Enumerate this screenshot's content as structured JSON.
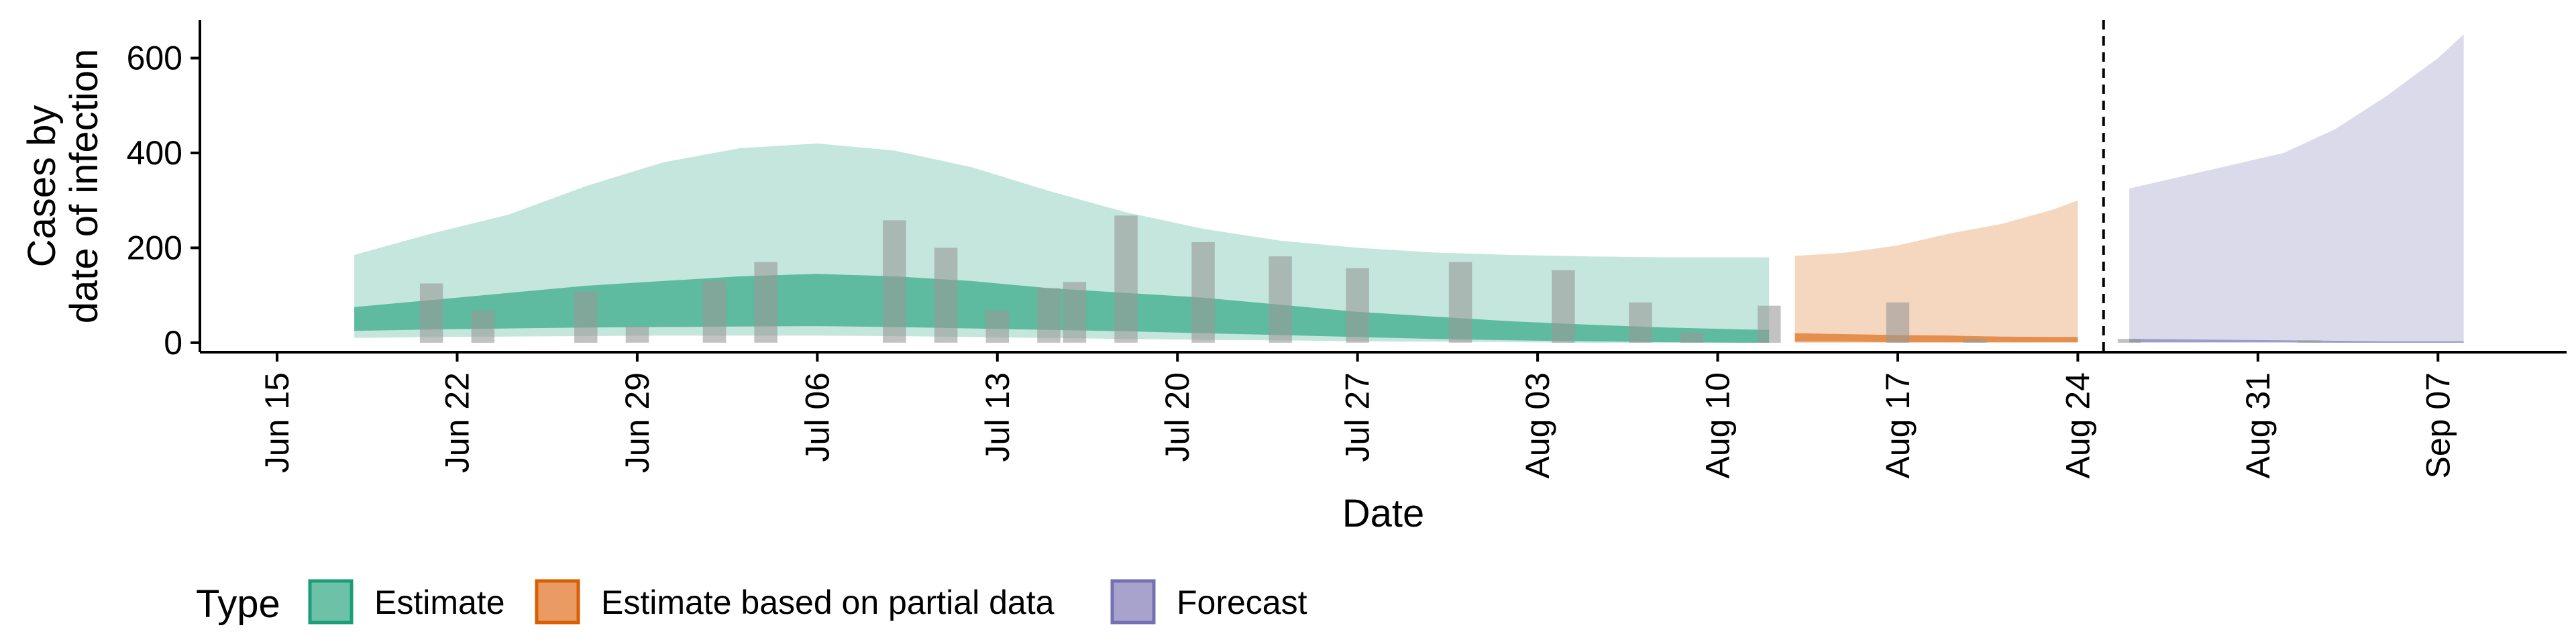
{
  "chart_data": {
    "type": "area",
    "x_axis": {
      "label": "Date",
      "range": [
        "2020-06-12",
        "2020-09-12"
      ],
      "ticks": [
        {
          "date": "2020-06-15",
          "label": "Jun 15"
        },
        {
          "date": "2020-06-22",
          "label": "Jun 22"
        },
        {
          "date": "2020-06-29",
          "label": "Jun 29"
        },
        {
          "date": "2020-07-06",
          "label": "Jul 06"
        },
        {
          "date": "2020-07-13",
          "label": "Jul 13"
        },
        {
          "date": "2020-07-20",
          "label": "Jul 20"
        },
        {
          "date": "2020-07-27",
          "label": "Jul 27"
        },
        {
          "date": "2020-08-03",
          "label": "Aug 03"
        },
        {
          "date": "2020-08-10",
          "label": "Aug 10"
        },
        {
          "date": "2020-08-17",
          "label": "Aug 17"
        },
        {
          "date": "2020-08-24",
          "label": "Aug 24"
        },
        {
          "date": "2020-08-31",
          "label": "Aug 31"
        },
        {
          "date": "2020-09-07",
          "label": "Sep 07"
        }
      ]
    },
    "y_axis": {
      "label_lines": [
        "Cases by",
        "date of infection"
      ],
      "range": [
        -20,
        680
      ],
      "ticks": [
        0,
        200,
        400,
        600
      ]
    },
    "grid": false,
    "legend": {
      "position": "bottom-left",
      "title": "Type",
      "entries": [
        {
          "label": "Estimate",
          "fill": "#6dc1a6",
          "stroke": "#1b9e77"
        },
        {
          "label": "Estimate based on partial data",
          "fill": "#ea9b63",
          "stroke": "#d95f02"
        },
        {
          "label": "Forecast",
          "fill": "#a8a3cd",
          "stroke": "#7570b3"
        }
      ]
    },
    "colors": {
      "estimate": "#1b9e77",
      "partial": "#d95f02",
      "forecast": "#7570b3",
      "observed_bars": "#9a9a9a",
      "reference_line": "#000000"
    },
    "reference_line_date": "2020-08-25",
    "series": [
      {
        "type": "Estimate",
        "dates": [
          "2020-06-18",
          "2020-06-21",
          "2020-06-24",
          "2020-06-27",
          "2020-06-30",
          "2020-07-03",
          "2020-07-06",
          "2020-07-09",
          "2020-07-12",
          "2020-07-15",
          "2020-07-18",
          "2020-07-21",
          "2020-07-24",
          "2020-07-27",
          "2020-07-30",
          "2020-08-02",
          "2020-08-05",
          "2020-08-08",
          "2020-08-11",
          "2020-08-12"
        ],
        "outer_upper": [
          185,
          230,
          270,
          330,
          380,
          410,
          420,
          405,
          370,
          320,
          275,
          240,
          215,
          200,
          190,
          185,
          182,
          180,
          180,
          180
        ],
        "inner_upper": [
          75,
          90,
          105,
          120,
          130,
          140,
          145,
          140,
          130,
          115,
          105,
          95,
          80,
          65,
          55,
          45,
          38,
          32,
          28,
          27
        ],
        "inner_lower": [
          25,
          28,
          30,
          32,
          33,
          34,
          35,
          33,
          30,
          27,
          24,
          20,
          16,
          12,
          8,
          5,
          3,
          1,
          0,
          0
        ],
        "outer_lower": [
          10,
          12,
          13,
          14,
          15,
          15,
          15,
          14,
          12,
          10,
          8,
          6,
          5,
          3,
          2,
          1,
          0,
          0,
          0,
          0
        ]
      },
      {
        "type": "Estimate based on partial data",
        "dates": [
          "2020-08-13",
          "2020-08-15",
          "2020-08-17",
          "2020-08-19",
          "2020-08-21",
          "2020-08-23",
          "2020-08-24"
        ],
        "outer_upper": [
          183,
          190,
          205,
          230,
          250,
          280,
          300
        ],
        "inner_upper": [
          20,
          18,
          16,
          15,
          13,
          12,
          12
        ],
        "inner_lower": [
          2,
          2,
          1,
          1,
          1,
          1,
          1
        ],
        "outer_lower": [
          0,
          0,
          0,
          0,
          0,
          0,
          0
        ]
      },
      {
        "type": "Forecast",
        "dates": [
          "2020-08-26",
          "2020-08-28",
          "2020-08-30",
          "2020-09-01",
          "2020-09-03",
          "2020-09-05",
          "2020-09-07",
          "2020-09-08"
        ],
        "outer_upper": [
          325,
          350,
          375,
          400,
          450,
          520,
          600,
          650
        ],
        "inner_upper": [
          8,
          7,
          6,
          5,
          4,
          3,
          3,
          3
        ],
        "inner_lower": [
          1,
          1,
          1,
          1,
          0,
          0,
          0,
          0
        ],
        "outer_lower": [
          0,
          0,
          0,
          0,
          0,
          0,
          0,
          0
        ]
      }
    ],
    "observed_cases": [
      {
        "date": "2020-06-21",
        "value": 125
      },
      {
        "date": "2020-06-23",
        "value": 68
      },
      {
        "date": "2020-06-27",
        "value": 108
      },
      {
        "date": "2020-06-29",
        "value": 35
      },
      {
        "date": "2020-07-02",
        "value": 130
      },
      {
        "date": "2020-07-04",
        "value": 170
      },
      {
        "date": "2020-07-09",
        "value": 258
      },
      {
        "date": "2020-07-11",
        "value": 200
      },
      {
        "date": "2020-07-13",
        "value": 68
      },
      {
        "date": "2020-07-15",
        "value": 115
      },
      {
        "date": "2020-07-16",
        "value": 128
      },
      {
        "date": "2020-07-18",
        "value": 268
      },
      {
        "date": "2020-07-21",
        "value": 212
      },
      {
        "date": "2020-07-24",
        "value": 182
      },
      {
        "date": "2020-07-27",
        "value": 157
      },
      {
        "date": "2020-07-31",
        "value": 170
      },
      {
        "date": "2020-08-04",
        "value": 153
      },
      {
        "date": "2020-08-07",
        "value": 85
      },
      {
        "date": "2020-08-09",
        "value": 22
      },
      {
        "date": "2020-08-12",
        "value": 78
      },
      {
        "date": "2020-08-17",
        "value": 85
      },
      {
        "date": "2020-08-20",
        "value": 8
      },
      {
        "date": "2020-08-26",
        "value": 8
      },
      {
        "date": "2020-09-02",
        "value": 5
      }
    ]
  }
}
